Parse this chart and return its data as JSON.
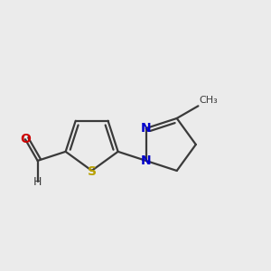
{
  "bg_color": "#ebebeb",
  "bond_color": "#3a3a3a",
  "S_color": "#b8a000",
  "N_color": "#0000cc",
  "O_color": "#cc0000",
  "H_color": "#3a3a3a",
  "line_width": 1.6,
  "figsize": [
    3.0,
    3.0
  ],
  "dpi": 100,
  "xlim": [
    -0.55,
    0.85
  ],
  "ylim": [
    -0.38,
    0.38
  ]
}
